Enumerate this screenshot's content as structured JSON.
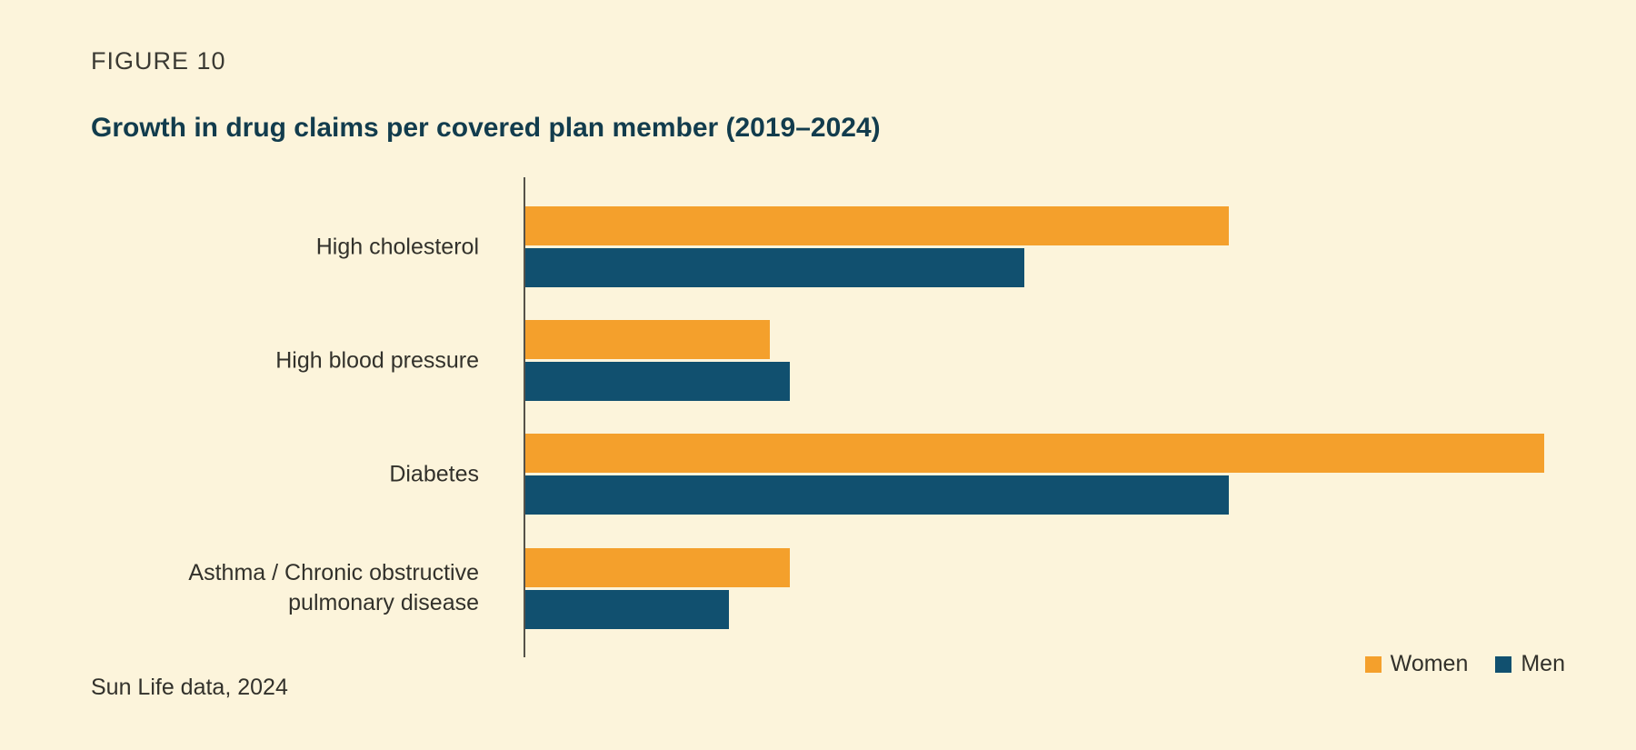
{
  "header": {
    "figure_label": "FIGURE 10",
    "title": "Growth in drug claims per covered plan member (2019–2024)"
  },
  "footer": {
    "source": "Sun Life data, 2024"
  },
  "legend": [
    {
      "label": "Women",
      "color": "#F4A02C"
    },
    {
      "label": "Men",
      "color": "#11506F"
    }
  ],
  "colors": {
    "background": "#FCF4DB",
    "title": "#123C4D",
    "figure_label": "#3B3A33",
    "text": "#32312B",
    "axis": "#55524A",
    "women_bar": "#F4A02C",
    "men_bar": "#11506F"
  },
  "chart_data": {
    "type": "bar",
    "orientation": "horizontal",
    "title": "Growth in drug claims per covered plan member (2019–2024)",
    "categories": [
      "High cholesterol",
      "High blood pressure",
      "Diabetes",
      "Asthma / Chronic obstructive pulmonary disease"
    ],
    "categories_display": [
      [
        "High cholesterol"
      ],
      [
        "High blood pressure"
      ],
      [
        "Diabetes"
      ],
      [
        "Asthma / Chronic obstructive",
        "pulmonary disease"
      ]
    ],
    "series": [
      {
        "name": "Women",
        "color": "#F4A02C",
        "values": [
          69,
          24,
          100,
          26
        ]
      },
      {
        "name": "Men",
        "color": "#11506F",
        "values": [
          49,
          26,
          69,
          20
        ]
      }
    ],
    "value_axis": {
      "visible": false,
      "ticks": [],
      "range": [
        0,
        109
      ],
      "note": "no numeric axis or data labels shown; values are relative estimates with longest bar (Diabetes, Women) = 100"
    },
    "gridlines": false,
    "legend_position": "bottom-right",
    "source": "Sun Life data, 2024"
  }
}
